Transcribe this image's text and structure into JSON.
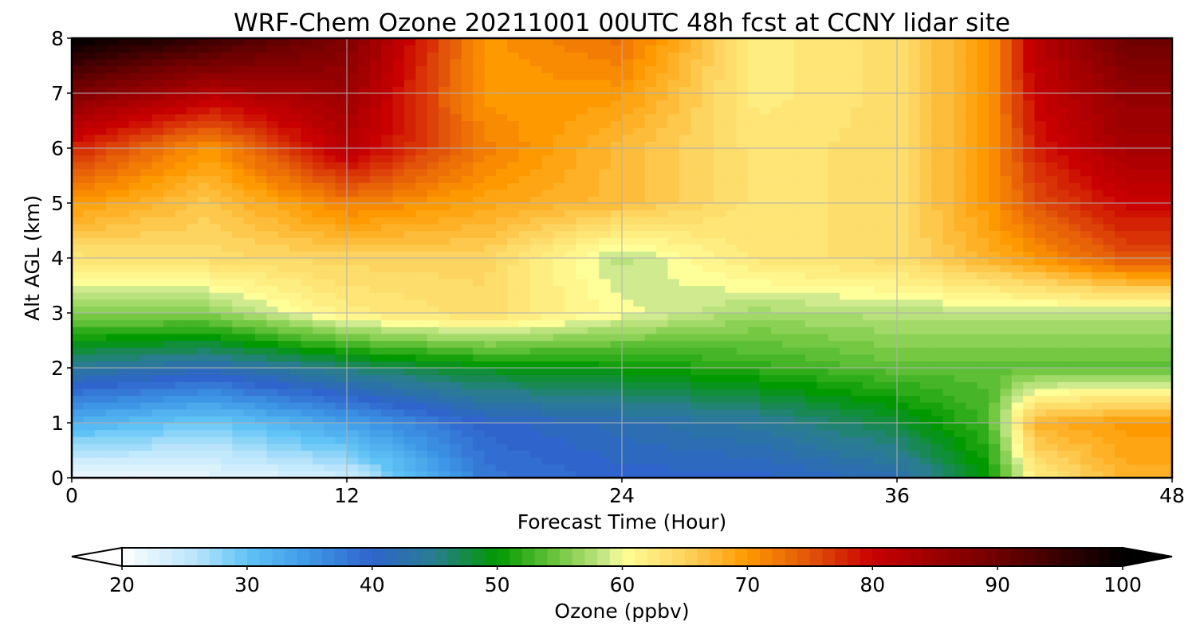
{
  "chart_data": {
    "type": "heatmap",
    "title": "WRF-Chem Ozone  20211001 00UTC 48h fcst at CCNY lidar site",
    "xlabel": "Forecast Time (Hour)",
    "ylabel": "Alt AGL (km)",
    "xlim": [
      0,
      48
    ],
    "ylim": [
      0,
      8
    ],
    "x_ticks": [
      0,
      12,
      24,
      36,
      48
    ],
    "y_ticks": [
      0,
      1,
      2,
      3,
      4,
      5,
      6,
      7,
      8
    ],
    "grid": true,
    "x": [
      0,
      6,
      12,
      18,
      24,
      30,
      36,
      40,
      42,
      46,
      48
    ],
    "y": [
      0,
      1,
      2,
      3,
      4,
      5,
      6,
      7,
      8
    ],
    "z": [
      [
        21,
        22,
        24,
        38,
        40,
        40,
        42,
        50,
        62,
        68,
        68
      ],
      [
        32,
        29,
        34,
        40,
        42,
        44,
        48,
        53,
        68,
        70,
        70
      ],
      [
        44,
        42,
        46,
        49,
        50,
        52,
        54,
        54,
        54,
        54,
        54
      ],
      [
        56,
        56,
        62,
        64,
        60,
        57,
        58,
        58,
        58,
        58,
        58
      ],
      [
        63,
        64,
        65,
        65,
        58,
        63,
        64,
        68,
        70,
        75,
        75
      ],
      [
        70,
        66,
        72,
        69,
        67,
        63,
        64,
        70,
        75,
        80,
        80
      ],
      [
        78,
        70,
        82,
        72,
        67,
        63,
        64,
        70,
        78,
        84,
        84
      ],
      [
        88,
        82,
        85,
        70,
        70,
        62,
        64,
        70,
        80,
        86,
        86
      ],
      [
        100,
        95,
        88,
        70,
        73,
        62,
        64,
        70,
        82,
        90,
        90
      ]
    ],
    "colorbar": {
      "label": "Ozone  (ppbv)",
      "min": 20,
      "max": 100,
      "ticks": [
        20,
        30,
        40,
        50,
        60,
        70,
        80,
        90,
        100
      ],
      "extend": "both",
      "stops": [
        {
          "v": 20,
          "c": "#ffffff"
        },
        {
          "v": 26,
          "c": "#b7e4fb"
        },
        {
          "v": 30,
          "c": "#5fc3f5"
        },
        {
          "v": 35,
          "c": "#3e97e6"
        },
        {
          "v": 40,
          "c": "#2f64cc"
        },
        {
          "v": 45,
          "c": "#297d8e"
        },
        {
          "v": 50,
          "c": "#009900"
        },
        {
          "v": 55,
          "c": "#74c842"
        },
        {
          "v": 59,
          "c": "#d0eb8f"
        },
        {
          "v": 60,
          "c": "#ffff99"
        },
        {
          "v": 65,
          "c": "#fdd45f"
        },
        {
          "v": 70,
          "c": "#fe9900"
        },
        {
          "v": 75,
          "c": "#e2540a"
        },
        {
          "v": 80,
          "c": "#c90000"
        },
        {
          "v": 90,
          "c": "#6e0000"
        },
        {
          "v": 100,
          "c": "#000000"
        }
      ]
    }
  }
}
